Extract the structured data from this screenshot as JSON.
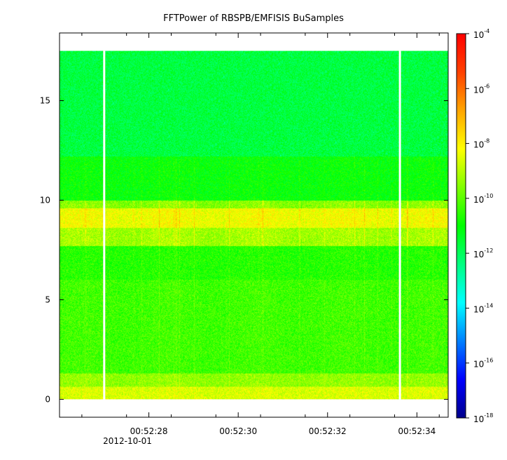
{
  "chart_data": {
    "type": "heatmap",
    "title": "FFTPower of RBSPB/EMFISIS  BuSamples",
    "xlabel": "",
    "ylabel": "",
    "x_axis": {
      "tick_labels": [
        "00:52:28",
        "00:52:30",
        "00:52:32",
        "00:52:34"
      ],
      "tick_values_sec": [
        28,
        30,
        32,
        34
      ],
      "date_label": "2012-10-01",
      "xlim_sec": [
        26.0,
        34.7
      ],
      "minor_ticks_sec": [
        26.5,
        27.5,
        28.5,
        29.5,
        30.5,
        31.5,
        32.5,
        33.5,
        34.5
      ]
    },
    "y_axis": {
      "tick_labels": [
        "0",
        "5",
        "10",
        "15"
      ],
      "tick_values": [
        0,
        5,
        10,
        15
      ],
      "ylim": [
        -0.9,
        18.4
      ],
      "data_top": 17.5
    },
    "colorbar": {
      "scale": "log",
      "range": [
        1e-18,
        0.0001
      ],
      "tick_labels": [
        {
          "base": "10",
          "exp": "-4"
        },
        {
          "base": "10",
          "exp": "-6"
        },
        {
          "base": "10",
          "exp": "-8"
        },
        {
          "base": "10",
          "exp": "-10"
        },
        {
          "base": "10",
          "exp": "-12"
        },
        {
          "base": "10",
          "exp": "-14"
        },
        {
          "base": "10",
          "exp": "-16"
        },
        {
          "base": "10",
          "exp": "-18"
        }
      ],
      "tick_values_log10": [
        -4,
        -6,
        -8,
        -10,
        -12,
        -14,
        -16,
        -18
      ],
      "colormap": [
        "#00008b",
        "#0000ff",
        "#0080ff",
        "#00ffff",
        "#00ff80",
        "#00ff00",
        "#80ff00",
        "#ffff00",
        "#ffa500",
        "#ff4000",
        "#ff0000"
      ]
    },
    "data_gaps_sec": [
      27.0,
      33.62
    ],
    "bands": [
      {
        "y_from": 12.2,
        "y_to": 17.5,
        "log10_power": -11.7
      },
      {
        "y_from": 10.0,
        "y_to": 12.2,
        "log10_power": -11.0
      },
      {
        "y_from": 9.6,
        "y_to": 10.0,
        "log10_power": -9.5
      },
      {
        "y_from": 8.6,
        "y_to": 9.6,
        "log10_power": -8.3
      },
      {
        "y_from": 7.7,
        "y_to": 8.6,
        "log10_power": -9.2
      },
      {
        "y_from": 6.0,
        "y_to": 7.7,
        "log10_power": -10.6
      },
      {
        "y_from": 1.3,
        "y_to": 6.0,
        "log10_power": -10.3
      },
      {
        "y_from": 0.6,
        "y_to": 1.3,
        "log10_power": -9.4
      },
      {
        "y_from": 0.0,
        "y_to": 0.6,
        "log10_power": -8.6
      }
    ]
  }
}
